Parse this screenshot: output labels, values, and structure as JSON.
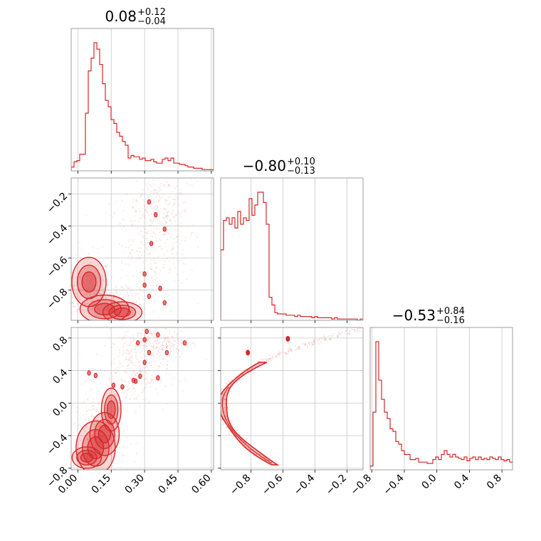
{
  "chart_data": {
    "type": "corner",
    "color": "#d62728",
    "grid": true,
    "parameters": [
      {
        "median": "0.08",
        "plus": "+0.12",
        "minus": "−0.04",
        "range": [
          -0.03,
          0.61
        ],
        "ticks": [
          0.0,
          0.15,
          0.3,
          0.45,
          0.6
        ],
        "tick_labels": [
          "0.00",
          "0.15",
          "0.30",
          "0.45",
          "0.60"
        ]
      },
      {
        "median": "−0.80",
        "plus": "+0.10",
        "minus": "−0.13",
        "range": [
          -0.99,
          -0.1
        ],
        "ticks": [
          -0.8,
          -0.6,
          -0.4,
          -0.2
        ],
        "tick_labels": [
          "−0.8",
          "−0.6",
          "−0.4",
          "−0.2"
        ]
      },
      {
        "median": "−0.53",
        "plus": "+0.84",
        "minus": "−0.16",
        "range": [
          -0.82,
          0.93
        ],
        "ticks": [
          -0.8,
          -0.4,
          0.0,
          0.4,
          0.8
        ],
        "tick_labels": [
          "−0.8",
          "−0.4",
          "0.0",
          "0.4",
          "0.8"
        ]
      }
    ],
    "histograms": [
      {
        "param": 0,
        "x_start": -0.03,
        "bin_width": 0.0128,
        "counts": [
          0.03,
          0.07,
          0.08,
          0.13,
          0.13,
          0.45,
          0.78,
          0.88,
          1.0,
          0.95,
          0.83,
          0.68,
          0.55,
          0.5,
          0.4,
          0.37,
          0.3,
          0.27,
          0.23,
          0.2,
          0.1,
          0.12,
          0.11,
          0.11,
          0.09,
          0.1,
          0.08,
          0.08,
          0.09,
          0.07,
          0.06,
          0.06,
          0.09,
          0.1,
          0.08,
          0.1,
          0.06,
          0.06,
          0.05,
          0.05,
          0.04,
          0.03,
          0.03,
          0.02,
          0.02,
          0.02,
          0.01,
          0.01,
          0.01,
          0.01
        ]
      },
      {
        "param": 1,
        "x_start": -0.99,
        "bin_width": 0.0178,
        "counts": [
          0.55,
          0.78,
          0.8,
          0.75,
          0.8,
          0.72,
          0.85,
          0.75,
          0.8,
          0.78,
          0.95,
          0.82,
          0.9,
          1.0,
          1.0,
          0.92,
          0.75,
          0.18,
          0.12,
          0.06,
          0.05,
          0.05,
          0.05,
          0.04,
          0.04,
          0.04,
          0.03,
          0.04,
          0.03,
          0.03,
          0.03,
          0.03,
          0.02,
          0.03,
          0.02,
          0.02,
          0.02,
          0.02,
          0.02,
          0.01,
          0.02,
          0.01,
          0.01,
          0.01,
          0.01,
          0.01,
          0.01,
          0.01,
          0.0,
          0.01
        ]
      },
      {
        "param": 2,
        "x_start": -0.82,
        "bin_width": 0.035,
        "counts": [
          0.03,
          0.45,
          1.0,
          0.7,
          0.55,
          0.45,
          0.4,
          0.32,
          0.3,
          0.22,
          0.2,
          0.15,
          0.12,
          0.12,
          0.08,
          0.08,
          0.09,
          0.06,
          0.06,
          0.06,
          0.05,
          0.05,
          0.08,
          0.1,
          0.08,
          0.12,
          0.15,
          0.12,
          0.1,
          0.12,
          0.1,
          0.09,
          0.08,
          0.1,
          0.07,
          0.09,
          0.1,
          0.08,
          0.1,
          0.08,
          0.09,
          0.08,
          0.1,
          0.09,
          0.08,
          0.1,
          0.08,
          0.07,
          0.08,
          0.06
        ]
      }
    ],
    "pairs": [
      {
        "x_param": 0,
        "y_param": 1,
        "core": [
          [
            0.05,
            -0.75,
            0.035,
            0.07
          ],
          [
            0.12,
            -0.92,
            0.05,
            0.04
          ],
          [
            0.2,
            -0.94,
            0.04,
            0.03
          ]
        ],
        "spread": [
          [
            0.05,
            -0.8,
            0.05,
            0.1
          ],
          [
            0.15,
            -0.9,
            0.08,
            0.05
          ],
          [
            0.3,
            -0.55,
            0.1,
            0.2
          ],
          [
            0.38,
            -0.3,
            0.06,
            0.15
          ]
        ],
        "islands": [
          [
            0.32,
            -0.25
          ],
          [
            0.35,
            -0.33
          ],
          [
            0.39,
            -0.42
          ],
          [
            0.33,
            -0.51
          ],
          [
            0.3,
            -0.7
          ],
          [
            0.3,
            -0.77
          ],
          [
            0.32,
            -0.84
          ],
          [
            0.37,
            -0.79
          ],
          [
            0.39,
            -0.88
          ]
        ]
      },
      {
        "x_param": 0,
        "y_param": 2,
        "core": [
          [
            0.04,
            -0.67,
            0.03,
            0.06
          ],
          [
            0.08,
            -0.55,
            0.04,
            0.15
          ],
          [
            0.12,
            -0.38,
            0.03,
            0.12
          ],
          [
            0.15,
            -0.08,
            0.02,
            0.12
          ]
        ],
        "spread": [
          [
            0.1,
            -0.4,
            0.06,
            0.3
          ],
          [
            0.25,
            0.35,
            0.08,
            0.2
          ],
          [
            0.35,
            0.75,
            0.08,
            0.1
          ]
        ],
        "islands": [
          [
            0.05,
            0.37
          ],
          [
            0.08,
            0.34
          ],
          [
            0.16,
            0.22
          ],
          [
            0.2,
            0.2
          ],
          [
            0.25,
            0.28
          ],
          [
            0.28,
            0.33
          ],
          [
            0.3,
            0.5
          ],
          [
            0.32,
            0.62
          ],
          [
            0.27,
            0.74
          ],
          [
            0.3,
            0.78
          ],
          [
            0.31,
            0.88
          ],
          [
            0.36,
            0.84
          ],
          [
            0.4,
            0.62
          ],
          [
            0.48,
            0.74
          ],
          [
            0.36,
            0.31
          ],
          [
            0.26,
            0.27
          ]
        ]
      },
      {
        "x_param": 1,
        "y_param": 2,
        "arc": {
          "vertex": [
            -0.98,
            0.0
          ],
          "y_top": 0.93,
          "y_bottom": -0.74,
          "x_top": -0.1,
          "x_bottom": -0.67
        },
        "islands": [
          [
            -0.82,
            0.62
          ],
          [
            -0.57,
            0.79
          ]
        ]
      }
    ]
  }
}
